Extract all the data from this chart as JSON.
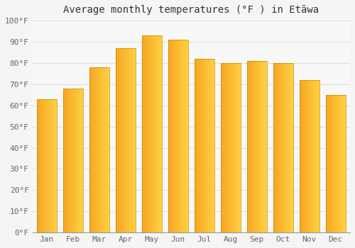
{
  "title": "Average monthly temperatures (°F ) in Etāwa",
  "months": [
    "Jan",
    "Feb",
    "Mar",
    "Apr",
    "May",
    "Jun",
    "Jul",
    "Aug",
    "Sep",
    "Oct",
    "Nov",
    "Dec"
  ],
  "values": [
    63,
    68,
    78,
    87,
    93,
    91,
    82,
    80,
    81,
    80,
    72,
    65
  ],
  "bar_color_left": "#F5A623",
  "bar_color_right": "#FFD040",
  "bar_border_color": "#CC8800",
  "ylim": [
    0,
    100
  ],
  "yticks": [
    0,
    10,
    20,
    30,
    40,
    50,
    60,
    70,
    80,
    90,
    100
  ],
  "ytick_labels": [
    "0°F",
    "10°F",
    "20°F",
    "30°F",
    "40°F",
    "50°F",
    "60°F",
    "70°F",
    "80°F",
    "90°F",
    "100°F"
  ],
  "title_fontsize": 10,
  "tick_fontsize": 8,
  "background_color": "#f5f5f5",
  "plot_bg_color": "#f8f8f8",
  "grid_color": "#e0e0e0"
}
